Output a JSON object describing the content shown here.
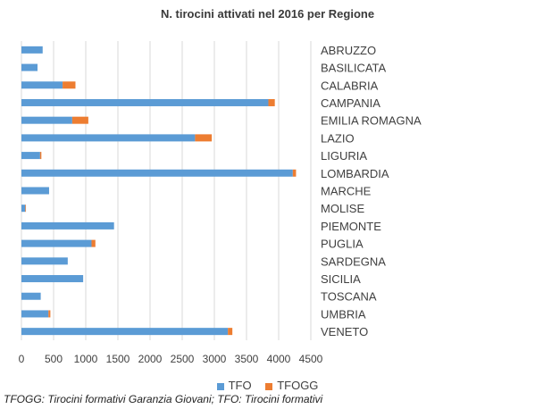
{
  "chart_data": {
    "type": "bar",
    "orientation": "horizontal",
    "stacked": true,
    "title": "N. tirocini attivati nel 2016 per Regione",
    "categories": [
      "ABRUZZO",
      "BASILICATA",
      "CALABRIA",
      "CAMPANIA",
      "EMILIA ROMAGNA",
      "LAZIO",
      "LIGURIA",
      "LOMBARDIA",
      "MARCHE",
      "MOLISE",
      "PIEMONTE",
      "PUGLIA",
      "SARDEGNA",
      "SICILIA",
      "TOSCANA",
      "UMBRIA",
      "VENETO"
    ],
    "series": [
      {
        "name": "TFO",
        "color": "#5b9bd5",
        "values": [
          330,
          250,
          640,
          3840,
          790,
          2700,
          290,
          4220,
          430,
          60,
          1440,
          1090,
          720,
          960,
          300,
          420,
          3210
        ]
      },
      {
        "name": "TFOGG",
        "color": "#ed7d31",
        "values": [
          0,
          0,
          200,
          100,
          250,
          260,
          20,
          50,
          0,
          10,
          0,
          60,
          0,
          0,
          0,
          30,
          70
        ]
      }
    ],
    "xlim": [
      0,
      4500
    ],
    "xticks": [
      "0",
      "500",
      "1000",
      "1500",
      "2000",
      "2500",
      "3000",
      "3500",
      "4000",
      "4500"
    ],
    "grid": true,
    "legend": "bottom"
  },
  "footnote": "TFOGG: Tirocini formativi Garanzia Giovani; TFO: Tirocini formativi"
}
